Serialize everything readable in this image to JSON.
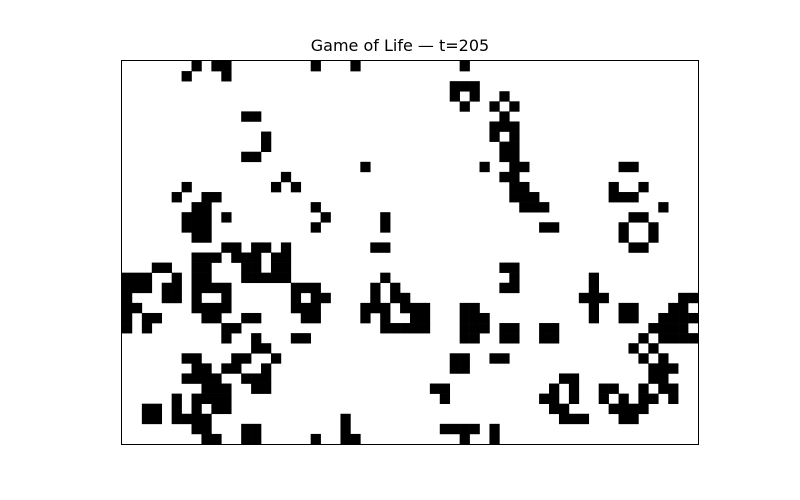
{
  "title": "Game of Life — t=205",
  "board": {
    "cols": 58,
    "rows": 38,
    "alive_color": "#000000",
    "dead_color": "#ffffff",
    "cells": [
      [
        7,
        0
      ],
      [
        9,
        0
      ],
      [
        10,
        0
      ],
      [
        19,
        0
      ],
      [
        23,
        0
      ],
      [
        34,
        0
      ],
      [
        6,
        1
      ],
      [
        10,
        1
      ],
      [
        33,
        2
      ],
      [
        34,
        2
      ],
      [
        35,
        2
      ],
      [
        33,
        3
      ],
      [
        35,
        3
      ],
      [
        38,
        3
      ],
      [
        34,
        4
      ],
      [
        37,
        4
      ],
      [
        39,
        4
      ],
      [
        12,
        5
      ],
      [
        13,
        5
      ],
      [
        38,
        5
      ],
      [
        37,
        6
      ],
      [
        38,
        6
      ],
      [
        39,
        6
      ],
      [
        14,
        7
      ],
      [
        37,
        7
      ],
      [
        39,
        7
      ],
      [
        14,
        8
      ],
      [
        38,
        8
      ],
      [
        39,
        8
      ],
      [
        12,
        9
      ],
      [
        13,
        9
      ],
      [
        38,
        9
      ],
      [
        39,
        9
      ],
      [
        36,
        10
      ],
      [
        39,
        10
      ],
      [
        40,
        10
      ],
      [
        38,
        11
      ],
      [
        39,
        11
      ],
      [
        24,
        10
      ],
      [
        50,
        10
      ],
      [
        51,
        10
      ],
      [
        39,
        12
      ],
      [
        40,
        12
      ],
      [
        49,
        12
      ],
      [
        52,
        12
      ],
      [
        49,
        13
      ],
      [
        50,
        13
      ],
      [
        51,
        13
      ],
      [
        16,
        11
      ],
      [
        39,
        13
      ],
      [
        40,
        13
      ],
      [
        41,
        13
      ],
      [
        15,
        12
      ],
      [
        17,
        12
      ],
      [
        40,
        14
      ],
      [
        41,
        14
      ],
      [
        42,
        14
      ],
      [
        54,
        14
      ],
      [
        6,
        12
      ],
      [
        5,
        13
      ],
      [
        8,
        13
      ],
      [
        9,
        13
      ],
      [
        7,
        14
      ],
      [
        8,
        14
      ],
      [
        6,
        15
      ],
      [
        7,
        15
      ],
      [
        8,
        15
      ],
      [
        10,
        15
      ],
      [
        19,
        14
      ],
      [
        20,
        15
      ],
      [
        19,
        16
      ],
      [
        6,
        16
      ],
      [
        7,
        16
      ],
      [
        8,
        16
      ],
      [
        7,
        17
      ],
      [
        8,
        17
      ],
      [
        42,
        16
      ],
      [
        43,
        16
      ],
      [
        26,
        15
      ],
      [
        26,
        16
      ],
      [
        51,
        15
      ],
      [
        52,
        15
      ],
      [
        50,
        16
      ],
      [
        50,
        17
      ],
      [
        53,
        16
      ],
      [
        53,
        17
      ],
      [
        51,
        18
      ],
      [
        52,
        18
      ],
      [
        25,
        18
      ],
      [
        26,
        18
      ],
      [
        10,
        18
      ],
      [
        11,
        18
      ],
      [
        13,
        18
      ],
      [
        14,
        18
      ],
      [
        16,
        18
      ],
      [
        11,
        19
      ],
      [
        15,
        19
      ],
      [
        16,
        19
      ],
      [
        7,
        19
      ],
      [
        8,
        19
      ],
      [
        9,
        19
      ],
      [
        12,
        19
      ],
      [
        13,
        19
      ],
      [
        15,
        19
      ],
      [
        16,
        19
      ],
      [
        7,
        20
      ],
      [
        8,
        20
      ],
      [
        12,
        20
      ],
      [
        13,
        20
      ],
      [
        15,
        20
      ],
      [
        16,
        20
      ],
      [
        3,
        20
      ],
      [
        4,
        20
      ],
      [
        2,
        21
      ],
      [
        5,
        21
      ],
      [
        2,
        22
      ],
      [
        4,
        22
      ],
      [
        1,
        21
      ],
      [
        1,
        22
      ],
      [
        4,
        23
      ],
      [
        5,
        23
      ],
      [
        0,
        21
      ],
      [
        0,
        22
      ],
      [
        5,
        22
      ],
      [
        12,
        21
      ],
      [
        13,
        21
      ],
      [
        14,
        21
      ],
      [
        15,
        21
      ],
      [
        16,
        21
      ],
      [
        7,
        21
      ],
      [
        7,
        22
      ],
      [
        8,
        21
      ],
      [
        38,
        20
      ],
      [
        39,
        20
      ],
      [
        39,
        21
      ],
      [
        38,
        22
      ],
      [
        39,
        22
      ],
      [
        47,
        21
      ],
      [
        47,
        22
      ],
      [
        46,
        23
      ],
      [
        47,
        23
      ],
      [
        48,
        23
      ],
      [
        47,
        24
      ],
      [
        47,
        25
      ],
      [
        26,
        21
      ],
      [
        25,
        22
      ],
      [
        27,
        22
      ],
      [
        25,
        23
      ],
      [
        27,
        23
      ],
      [
        28,
        23
      ],
      [
        24,
        24
      ],
      [
        25,
        24
      ],
      [
        26,
        24
      ],
      [
        28,
        24
      ],
      [
        29,
        24
      ],
      [
        24,
        25
      ],
      [
        26,
        25
      ],
      [
        29,
        25
      ],
      [
        26,
        26
      ],
      [
        27,
        26
      ],
      [
        28,
        26
      ],
      [
        8,
        22
      ],
      [
        9,
        22
      ],
      [
        10,
        22
      ],
      [
        7,
        23
      ],
      [
        10,
        23
      ],
      [
        7,
        24
      ],
      [
        8,
        24
      ],
      [
        9,
        24
      ],
      [
        10,
        24
      ],
      [
        8,
        25
      ],
      [
        9,
        25
      ],
      [
        17,
        22
      ],
      [
        18,
        22
      ],
      [
        19,
        22
      ],
      [
        17,
        23
      ],
      [
        19,
        23
      ],
      [
        20,
        23
      ],
      [
        17,
        24
      ],
      [
        18,
        24
      ],
      [
        19,
        24
      ],
      [
        18,
        25
      ],
      [
        19,
        25
      ],
      [
        0,
        23
      ],
      [
        0,
        24
      ],
      [
        0,
        25
      ],
      [
        0,
        26
      ],
      [
        1,
        24
      ],
      [
        2,
        25
      ],
      [
        3,
        25
      ],
      [
        2,
        26
      ],
      [
        34,
        24
      ],
      [
        35,
        24
      ],
      [
        34,
        25
      ],
      [
        35,
        25
      ],
      [
        36,
        25
      ],
      [
        34,
        26
      ],
      [
        35,
        26
      ],
      [
        36,
        26
      ],
      [
        34,
        27
      ],
      [
        35,
        27
      ],
      [
        30,
        24
      ],
      [
        30,
        25
      ],
      [
        28,
        26
      ],
      [
        29,
        26
      ],
      [
        30,
        26
      ],
      [
        50,
        24
      ],
      [
        51,
        24
      ],
      [
        50,
        25
      ],
      [
        51,
        25
      ],
      [
        38,
        26
      ],
      [
        39,
        26
      ],
      [
        38,
        27
      ],
      [
        39,
        27
      ],
      [
        42,
        26
      ],
      [
        43,
        26
      ],
      [
        42,
        27
      ],
      [
        43,
        27
      ],
      [
        56,
        23
      ],
      [
        57,
        23
      ],
      [
        55,
        24
      ],
      [
        56,
        24
      ],
      [
        54,
        25
      ],
      [
        55,
        25
      ],
      [
        56,
        25
      ],
      [
        57,
        25
      ],
      [
        53,
        26
      ],
      [
        54,
        26
      ],
      [
        55,
        26
      ],
      [
        56,
        26
      ],
      [
        54,
        27
      ],
      [
        55,
        27
      ],
      [
        56,
        27
      ],
      [
        57,
        27
      ],
      [
        52,
        27
      ],
      [
        51,
        28
      ],
      [
        53,
        28
      ],
      [
        52,
        29
      ],
      [
        54,
        29
      ],
      [
        53,
        30
      ],
      [
        54,
        30
      ],
      [
        55,
        30
      ],
      [
        12,
        25
      ],
      [
        13,
        25
      ],
      [
        10,
        26
      ],
      [
        11,
        26
      ],
      [
        10,
        27
      ],
      [
        13,
        27
      ],
      [
        13,
        28
      ],
      [
        14,
        28
      ],
      [
        11,
        29
      ],
      [
        12,
        29
      ],
      [
        15,
        29
      ],
      [
        10,
        30
      ],
      [
        11,
        30
      ],
      [
        14,
        30
      ],
      [
        12,
        31
      ],
      [
        13,
        31
      ],
      [
        14,
        31
      ],
      [
        13,
        32
      ],
      [
        14,
        32
      ],
      [
        17,
        27
      ],
      [
        18,
        27
      ],
      [
        6,
        29
      ],
      [
        7,
        29
      ],
      [
        7,
        30
      ],
      [
        8,
        30
      ],
      [
        6,
        31
      ],
      [
        8,
        31
      ],
      [
        8,
        32
      ],
      [
        9,
        32
      ],
      [
        37,
        29
      ],
      [
        38,
        29
      ],
      [
        33,
        29
      ],
      [
        34,
        29
      ],
      [
        33,
        30
      ],
      [
        34,
        30
      ],
      [
        44,
        31
      ],
      [
        45,
        31
      ],
      [
        43,
        32
      ],
      [
        45,
        32
      ],
      [
        42,
        33
      ],
      [
        43,
        33
      ],
      [
        45,
        33
      ],
      [
        43,
        34
      ],
      [
        44,
        34
      ],
      [
        44,
        35
      ],
      [
        45,
        35
      ],
      [
        46,
        35
      ],
      [
        53,
        31
      ],
      [
        54,
        31
      ],
      [
        48,
        32
      ],
      [
        49,
        32
      ],
      [
        52,
        32
      ],
      [
        54,
        32
      ],
      [
        48,
        33
      ],
      [
        50,
        33
      ],
      [
        52,
        33
      ],
      [
        53,
        33
      ],
      [
        49,
        34
      ],
      [
        50,
        34
      ],
      [
        51,
        34
      ],
      [
        52,
        34
      ],
      [
        50,
        35
      ],
      [
        51,
        35
      ],
      [
        55,
        32
      ],
      [
        55,
        33
      ],
      [
        7,
        31
      ],
      [
        8,
        31
      ],
      [
        9,
        31
      ],
      [
        8,
        32
      ],
      [
        10,
        32
      ],
      [
        31,
        32
      ],
      [
        32,
        32
      ],
      [
        32,
        33
      ],
      [
        7,
        33
      ],
      [
        8,
        33
      ],
      [
        9,
        33
      ],
      [
        10,
        33
      ],
      [
        7,
        34
      ],
      [
        9,
        34
      ],
      [
        10,
        34
      ],
      [
        6,
        35
      ],
      [
        7,
        35
      ],
      [
        8,
        35
      ],
      [
        7,
        36
      ],
      [
        8,
        36
      ],
      [
        2,
        34
      ],
      [
        3,
        34
      ],
      [
        2,
        35
      ],
      [
        3,
        35
      ],
      [
        5,
        33
      ],
      [
        5,
        34
      ],
      [
        5,
        35
      ],
      [
        12,
        36
      ],
      [
        13,
        36
      ],
      [
        12,
        37
      ],
      [
        13,
        37
      ],
      [
        22,
        35
      ],
      [
        22,
        36
      ],
      [
        8,
        37
      ],
      [
        9,
        37
      ],
      [
        19,
        37
      ],
      [
        22,
        37
      ],
      [
        23,
        37
      ],
      [
        32,
        36
      ],
      [
        33,
        36
      ],
      [
        34,
        36
      ],
      [
        35,
        36
      ],
      [
        34,
        37
      ],
      [
        37,
        36
      ],
      [
        37,
        37
      ]
    ]
  }
}
